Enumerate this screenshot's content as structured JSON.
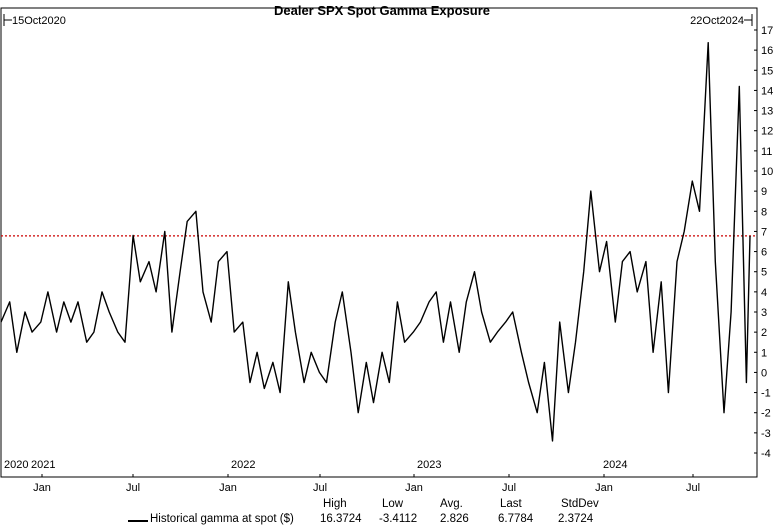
{
  "chart_data": {
    "type": "line",
    "title": "Dealer SPX Spot Gamma Exposure",
    "start_label": "15Oct2020",
    "end_label": "22Oct2024",
    "ylim": [
      -4,
      17
    ],
    "yticks": [
      "-4",
      "-3",
      "-2",
      "-1",
      "0",
      "1",
      "2",
      "3",
      "4",
      "5",
      "6",
      "7",
      "8",
      "9",
      "10",
      "11",
      "12",
      "13",
      "14",
      "15",
      "16",
      "17"
    ],
    "year_labels": [
      "2020",
      "2021",
      "2022",
      "2023",
      "2024"
    ],
    "month_labels": [
      "Jan",
      "Jul",
      "Jan",
      "Jul",
      "Jan",
      "Jul",
      "Jan",
      "Jul"
    ],
    "reference_line": {
      "value": 6.7784,
      "color": "#cc0000",
      "style": "dotted"
    },
    "series": [
      {
        "name": "Historical gamma at spot ($)",
        "color": "#000000",
        "x": [
          "2020-10-15",
          "2020-11-01",
          "2020-11-15",
          "2020-12-01",
          "2020-12-15",
          "2021-01-01",
          "2021-01-15",
          "2021-02-01",
          "2021-02-15",
          "2021-03-01",
          "2021-03-15",
          "2021-04-01",
          "2021-04-15",
          "2021-05-01",
          "2021-05-15",
          "2021-06-01",
          "2021-06-15",
          "2021-07-01",
          "2021-07-15",
          "2021-08-01",
          "2021-08-15",
          "2021-09-01",
          "2021-09-15",
          "2021-10-01",
          "2021-10-15",
          "2021-11-01",
          "2021-11-15",
          "2021-12-01",
          "2021-12-15",
          "2022-01-01",
          "2022-01-15",
          "2022-02-01",
          "2022-02-15",
          "2022-03-01",
          "2022-03-15",
          "2022-04-01",
          "2022-04-15",
          "2022-05-01",
          "2022-05-15",
          "2022-06-01",
          "2022-06-15",
          "2022-07-01",
          "2022-07-15",
          "2022-08-01",
          "2022-08-15",
          "2022-09-01",
          "2022-09-15",
          "2022-10-01",
          "2022-10-15",
          "2022-11-01",
          "2022-11-15",
          "2022-12-01",
          "2022-12-15",
          "2023-01-01",
          "2023-01-15",
          "2023-02-01",
          "2023-02-15",
          "2023-03-01",
          "2023-03-15",
          "2023-04-01",
          "2023-04-15",
          "2023-05-01",
          "2023-05-15",
          "2023-06-01",
          "2023-06-15",
          "2023-07-01",
          "2023-07-15",
          "2023-08-01",
          "2023-08-15",
          "2023-09-01",
          "2023-09-15",
          "2023-10-01",
          "2023-10-15",
          "2023-11-01",
          "2023-11-15",
          "2023-12-01",
          "2023-12-15",
          "2024-01-01",
          "2024-01-15",
          "2024-02-01",
          "2024-02-15",
          "2024-03-01",
          "2024-03-15",
          "2024-04-01",
          "2024-04-15",
          "2024-05-01",
          "2024-05-15",
          "2024-06-01",
          "2024-06-15",
          "2024-07-01",
          "2024-07-15",
          "2024-08-01",
          "2024-08-15",
          "2024-09-01",
          "2024-09-15",
          "2024-10-01",
          "2024-10-15",
          "2024-10-22"
        ],
        "y": [
          2.5,
          3.5,
          1.0,
          3.0,
          2.0,
          2.5,
          4.0,
          2.0,
          3.5,
          2.5,
          3.5,
          1.5,
          2.0,
          4.0,
          3.0,
          2.0,
          1.5,
          6.8,
          4.5,
          5.5,
          4.0,
          7.0,
          2.0,
          5.0,
          7.5,
          8.0,
          4.0,
          2.5,
          5.5,
          6.0,
          2.0,
          2.5,
          -0.5,
          1.0,
          -0.8,
          0.5,
          -1.0,
          4.5,
          2.0,
          -0.5,
          1.0,
          0.0,
          -0.5,
          2.5,
          4.0,
          1.0,
          -2.0,
          0.5,
          -1.5,
          1.0,
          -0.5,
          3.5,
          1.5,
          2.0,
          2.5,
          3.5,
          4.0,
          1.5,
          3.5,
          1.0,
          3.5,
          5.0,
          3.0,
          1.5,
          2.0,
          2.5,
          3.0,
          1.0,
          -0.5,
          -2.0,
          0.5,
          -3.4,
          2.5,
          -1.0,
          1.5,
          5.0,
          9.0,
          5.0,
          6.5,
          2.5,
          5.5,
          6.0,
          4.0,
          5.5,
          1.0,
          4.5,
          -1.0,
          5.5,
          7.0,
          9.5,
          8.0,
          16.37,
          5.5,
          -2.0,
          3.0,
          14.2,
          -0.5,
          6.78
        ]
      }
    ]
  },
  "legend": {
    "label": "Historical gamma at spot ($)",
    "headers": {
      "high": "High",
      "low": "Low",
      "avg": "Avg.",
      "last": "Last",
      "stddev": "StdDev"
    },
    "values": {
      "high": "16.3724",
      "low": "-3.4112",
      "avg": "2.826",
      "last": "6.7784",
      "stddev": "2.3724"
    }
  }
}
